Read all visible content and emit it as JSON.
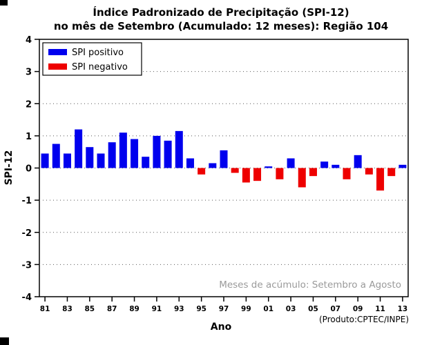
{
  "title": {
    "line1": "Índice Padronizado de Precipitação (SPI-12)",
    "line2": "no mês de Setembro (Acumulado: 12 meses): Região 104"
  },
  "legend": {
    "positive_label": "SPI positivo",
    "negative_label": "SPI negativo"
  },
  "axes": {
    "ylabel": "SPI-12",
    "xlabel": "Ano"
  },
  "annotation": "Meses de acúmulo: Setembro a Agosto",
  "product_credit": "(Produto:CPTEC/INPE)",
  "colors": {
    "positive": "#0000ee",
    "negative": "#ee0000",
    "annotation": "#9a9a9a",
    "frame": "#000000",
    "grid": "#555555"
  },
  "chart_data": {
    "type": "bar",
    "title": "Índice Padronizado de Precipitação (SPI-12) no mês de Setembro (Acumulado: 12 meses): Região 104",
    "xlabel": "Ano",
    "ylabel": "SPI-12",
    "ylim": [
      -4,
      4
    ],
    "yticks": [
      -4,
      -3,
      -2,
      -1,
      0,
      1,
      2,
      3,
      4
    ],
    "grid": "horizontal-dotted-at-integers",
    "legend_position": "top-left-inside",
    "x": [
      1981,
      1982,
      1983,
      1984,
      1985,
      1986,
      1987,
      1988,
      1989,
      1990,
      1991,
      1992,
      1993,
      1994,
      1995,
      1996,
      1997,
      1998,
      1999,
      2000,
      2001,
      2002,
      2003,
      2004,
      2005,
      2006,
      2007,
      2008,
      2009,
      2010,
      2011,
      2012,
      2013
    ],
    "xticklabels": [
      "81",
      "83",
      "85",
      "87",
      "89",
      "91",
      "93",
      "95",
      "97",
      "99",
      "01",
      "03",
      "05",
      "07",
      "09",
      "11",
      "13"
    ],
    "values": [
      0.45,
      0.75,
      0.45,
      1.2,
      0.65,
      0.45,
      0.8,
      1.1,
      0.9,
      0.35,
      1.0,
      0.85,
      1.15,
      0.3,
      -0.2,
      0.15,
      0.55,
      -0.15,
      -0.45,
      -0.4,
      0.05,
      -0.35,
      0.3,
      -0.6,
      -0.25,
      0.2,
      0.1,
      -0.35,
      0.4,
      -0.2,
      -0.7,
      -0.25,
      0.1
    ],
    "series_coloring": "blue-if-positive-red-if-negative"
  }
}
